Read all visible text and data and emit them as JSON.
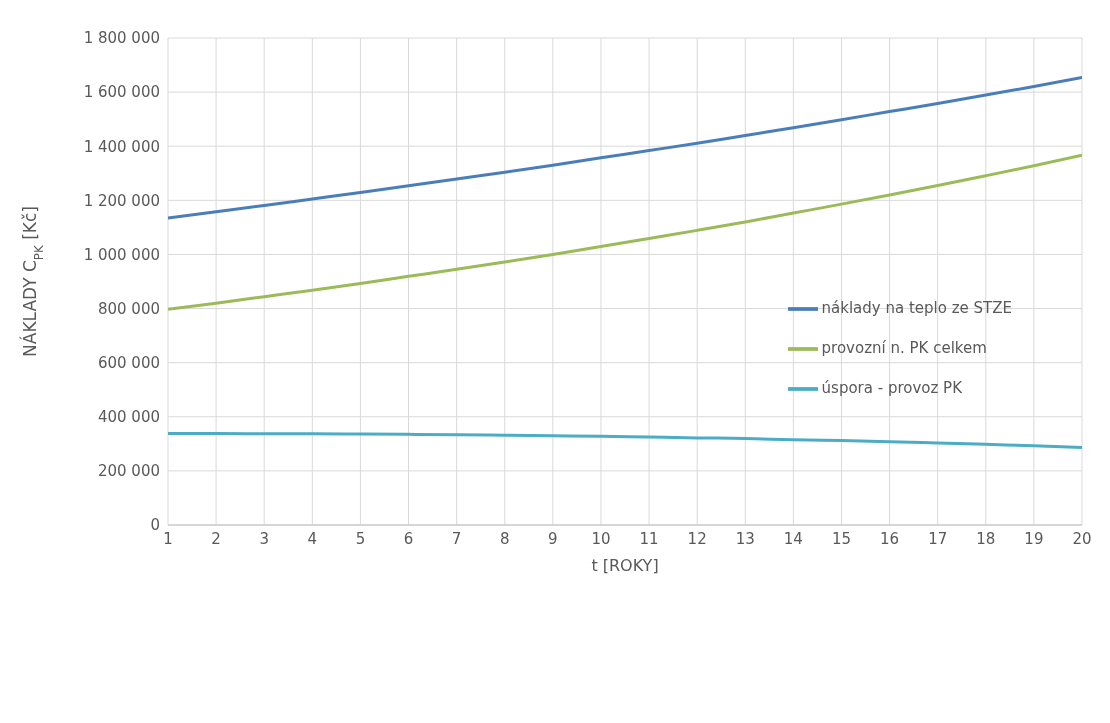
{
  "chart_data": {
    "type": "line",
    "xlabel": "t [ROKY]",
    "ylabel": "NÁKLADY C$_{PK}$ [Kč]",
    "x": [
      1,
      2,
      3,
      4,
      5,
      6,
      7,
      8,
      9,
      10,
      11,
      12,
      13,
      14,
      15,
      16,
      17,
      18,
      19,
      20
    ],
    "xlim": [
      1,
      20
    ],
    "xticks": [
      1,
      2,
      3,
      4,
      5,
      6,
      7,
      8,
      9,
      10,
      11,
      12,
      13,
      14,
      15,
      16,
      17,
      18,
      19,
      20
    ],
    "ylim": [
      0,
      1800000
    ],
    "yticks": [
      0,
      200000,
      400000,
      600000,
      800000,
      1000000,
      1200000,
      1400000,
      1600000,
      1800000
    ],
    "grid": true,
    "legend": "right",
    "marker": "none",
    "line_style": "solid",
    "series": [
      {
        "name": "náklady na teplo ze STZE",
        "color": "#4a7ebb",
        "values": [
          1135000,
          1158000,
          1181000,
          1205000,
          1229000,
          1254000,
          1279000,
          1304000,
          1330000,
          1357000,
          1384000,
          1411000,
          1440000,
          1468000,
          1498000,
          1528000,
          1558000,
          1589000,
          1621000,
          1654000
        ]
      },
      {
        "name": "provozní n. PK celkem",
        "color": "#9bbb59",
        "values": [
          797000,
          820000,
          844000,
          868000,
          893000,
          919000,
          945000,
          972000,
          1000000,
          1029000,
          1059000,
          1089000,
          1120000,
          1153000,
          1186000,
          1220000,
          1255000,
          1291000,
          1328000,
          1367000
        ]
      },
      {
        "name": "úspora - provoz PK",
        "color": "#4bacc6",
        "values": [
          338000,
          338000,
          337000,
          337000,
          336000,
          335000,
          334000,
          332000,
          330000,
          328000,
          325000,
          322000,
          320000,
          315000,
          312000,
          308000,
          303000,
          298000,
          293000,
          286000
        ]
      }
    ]
  }
}
